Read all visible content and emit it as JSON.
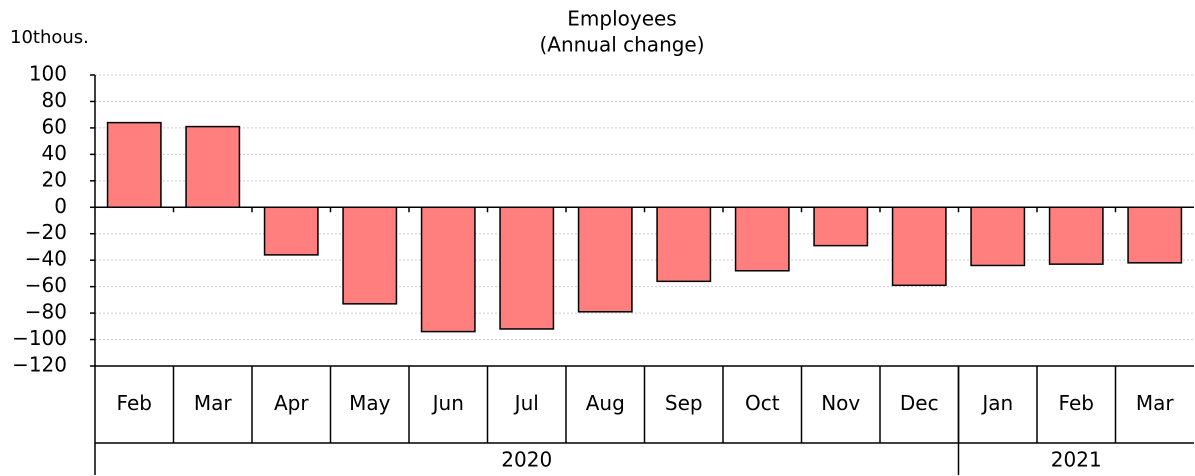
{
  "chart_data": {
    "type": "bar",
    "title": "Employees",
    "subtitle": "(Annual change)",
    "unit_label": "10thous.",
    "categories": [
      "Feb",
      "Mar",
      "Apr",
      "May",
      "Jun",
      "Jul",
      "Aug",
      "Sep",
      "Oct",
      "Nov",
      "Dec",
      "Jan",
      "Feb",
      "Mar"
    ],
    "category_groups": [
      {
        "label": "2020",
        "count": 11
      },
      {
        "label": "2021",
        "count": 3
      }
    ],
    "values": [
      64,
      61,
      -36,
      -73,
      -94,
      -92,
      -79,
      -56,
      -48,
      -29,
      -59,
      -44,
      -43,
      -42
    ],
    "color": "#ff7f7f",
    "ylim": [
      -120,
      100
    ],
    "yticks": [
      {
        "value": -120,
        "label": "−120"
      },
      {
        "value": -100,
        "label": "−100"
      },
      {
        "value": -80,
        "label": "−80"
      },
      {
        "value": -60,
        "label": "−60"
      },
      {
        "value": -40,
        "label": "−40"
      },
      {
        "value": -20,
        "label": "−20"
      },
      0,
      20,
      40,
      60,
      80,
      100
    ],
    "grid": true
  }
}
